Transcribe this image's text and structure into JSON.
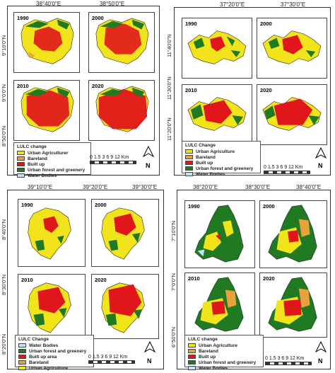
{
  "colors": {
    "urban_agriculture": "#f2e41a",
    "bareland": "#e8a23c",
    "built_up": "#e0161b",
    "urban_forest": "#1f7a22",
    "water": "#bfe3f5"
  },
  "panel_a": {
    "top_labels": [
      "38°40'0\"E",
      "38°50'0\"E"
    ],
    "left_labels": [
      "9°10'0\"N",
      "9°0'0\"N",
      "8°50'0\"N"
    ],
    "maps": [
      {
        "year": "1990"
      },
      {
        "year": "2000"
      },
      {
        "year": "2010"
      },
      {
        "year": "2020"
      }
    ],
    "legend_title": "LULC change",
    "legend": [
      "Urban Agriculturer",
      "Bareland",
      "Built up",
      "Urban forest and greenery",
      "Water Bodies"
    ],
    "scale": "0 1.5 3    6     9    12 Km",
    "north": "N"
  },
  "panel_b": {
    "top_labels": [
      "37°20'0\"E",
      "37°30'0\"E"
    ],
    "left_labels": [
      "11°40'0\"N",
      "11°30'0\"N",
      "11°20'0\"N"
    ],
    "maps": [
      {
        "year": "1990"
      },
      {
        "year": "2000"
      },
      {
        "year": "2010"
      },
      {
        "year": "2020"
      }
    ],
    "legend_title": "LULC Change",
    "legend": [
      "Urban Agriculture",
      "Bareland",
      "Built up",
      "Urban forest and greenery",
      "Water Bodies"
    ],
    "scale": "0 1.5 3    6     9    12 Km",
    "north": "N"
  },
  "panel_c": {
    "top_labels": [
      "39°10'0\"E",
      "39°20'0\"E",
      "39°30'0\"E"
    ],
    "left_labels": [
      "8°40'0\"N",
      "8°30'0\"N",
      "8°20'0\"N"
    ],
    "maps": [
      {
        "year": "1990"
      },
      {
        "year": "2000"
      },
      {
        "year": "2010"
      },
      {
        "year": "2020"
      }
    ],
    "legend_title": "LULC Change",
    "legend": [
      "Water Bodies",
      "Urban forest and greenery",
      "Built up area",
      "Bareland",
      "Urban Agriculture"
    ],
    "scale": "0 1.5 3    6     9    12 Km",
    "north": "N"
  },
  "panel_d": {
    "top_labels": [
      "38°20'0\"E",
      "38°30'0\"E",
      "38°40'0\"E"
    ],
    "left_labels": [
      "7°10'0\"N",
      "7°0'0\"N",
      "6°50'0\"N"
    ],
    "maps": [
      {
        "year": "1990"
      },
      {
        "year": "2000"
      },
      {
        "year": "2010"
      },
      {
        "year": "2020"
      }
    ],
    "legend_title": "LULC change",
    "legend": [
      "Urban Agriculture",
      "Bareland",
      "Built up",
      "Urban forest and greenery",
      "Water Bodies"
    ],
    "scale": "0 1.5 3    6     9    12 Km",
    "north": "N"
  }
}
